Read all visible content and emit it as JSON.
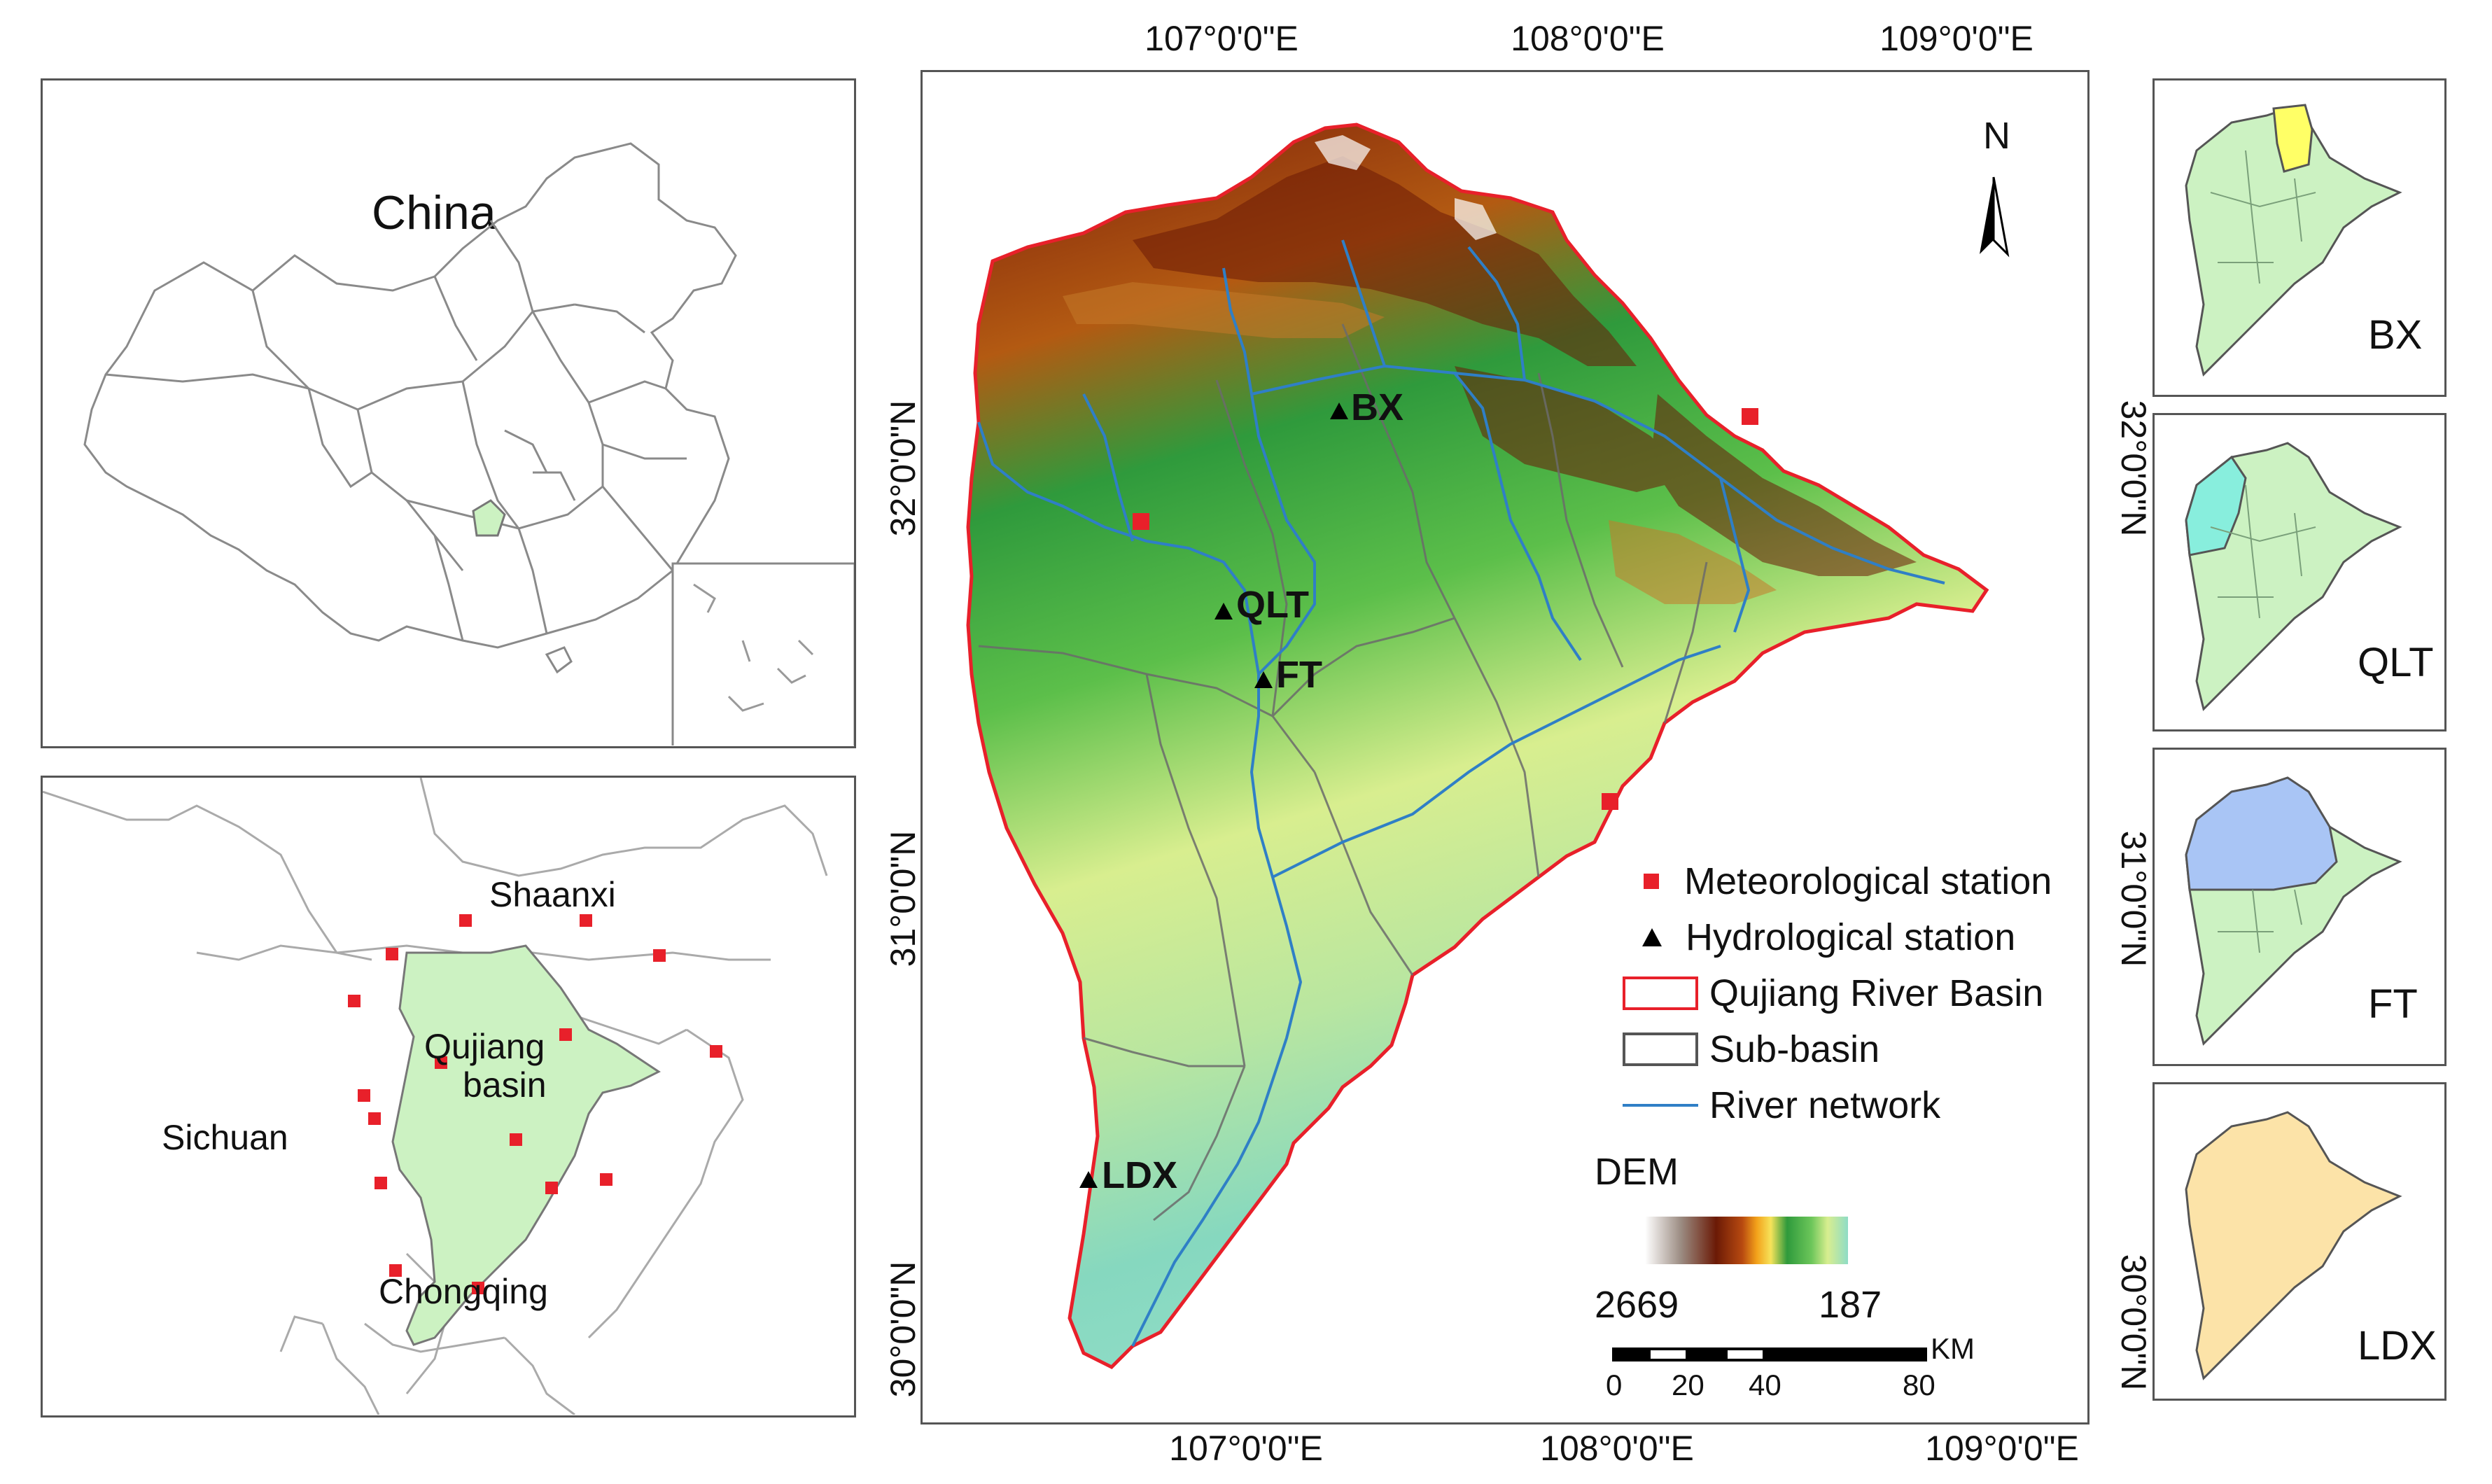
{
  "china_map": {
    "title": "China"
  },
  "region_map": {
    "provinces": [
      "Shaanxi",
      "Sichuan",
      "Chongqing"
    ],
    "basin_label_line1": "Qujiang",
    "basin_label_line2": "basin"
  },
  "main_map": {
    "top_longitudes": [
      "107°0'0\"E",
      "108°0'0\"E",
      "109°0'0\"E"
    ],
    "bottom_longitudes": [
      "107°0'0\"E",
      "108°0'0\"E",
      "109°0'0\"E"
    ],
    "left_latitudes": [
      "32°0'0\"N",
      "31°0'0\"N",
      "30°0'0\"N"
    ],
    "right_latitudes": [
      "32°0'0\"N",
      "31°0'0\"N",
      "30°0'0\"N"
    ],
    "north_label": "N",
    "stations": [
      "BX",
      "QLT",
      "FT",
      "LDX"
    ]
  },
  "legend": {
    "items": [
      {
        "label": "Meteorological station",
        "symbol": "red-square"
      },
      {
        "label": "Hydrological station",
        "symbol": "black-triangle"
      },
      {
        "label": "Qujiang River Basin",
        "symbol": "red-outline-box"
      },
      {
        "label": "Sub-basin",
        "symbol": "gray-outline-box"
      },
      {
        "label": "River network",
        "symbol": "blue-line"
      }
    ],
    "dem_title": "DEM",
    "dem_max": "2669",
    "dem_min": "187",
    "scale_unit": "KM",
    "scale_ticks": [
      "0",
      "20",
      "40",
      "80"
    ]
  },
  "thumbnails": [
    {
      "label": "BX",
      "highlight_color": "#ffff66"
    },
    {
      "label": "QLT",
      "highlight_color": "#88eedd"
    },
    {
      "label": "FT",
      "highlight_color": "#a9c5f5"
    },
    {
      "label": "LDX",
      "highlight_color": "#fce3a8"
    }
  ],
  "colors": {
    "basin_fill": "#ccf2c2",
    "basin_outline": "#e8202a",
    "river": "#2f7fc6",
    "met_station": "#e8202a"
  }
}
